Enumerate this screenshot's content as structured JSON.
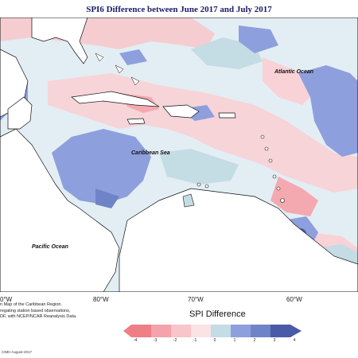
{
  "title": "SPI6 Difference between June 2017 and July 2017",
  "labels": {
    "atlantic": "Atlantic Ocean",
    "caribbean": "Caribbean Sea",
    "pacific": "Pacific Ocean"
  },
  "lon_ticks": [
    "0°W",
    "80°W",
    "70°W",
    "60°W"
  ],
  "legend": {
    "title": "SPI Difference",
    "ticks": [
      "-4",
      "-3",
      "-2",
      "-1",
      "0",
      "1",
      "2",
      "3",
      "4"
    ],
    "colors": [
      "#ef7f86",
      "#f4a3aa",
      "#f7c5ca",
      "#fbe2e4",
      "#e5f0f5",
      "#c4dce4",
      "#8e9fdd",
      "#6f84c8",
      "#4a5aa8"
    ]
  },
  "notes": {
    "line1": "n Map of the Caribbean Region.",
    "line2": "regating station based observations,",
    "line3": "DF, with NCEP/NCAR Reanalysis Data."
  },
  "copyright": "CIMH August-2017"
}
